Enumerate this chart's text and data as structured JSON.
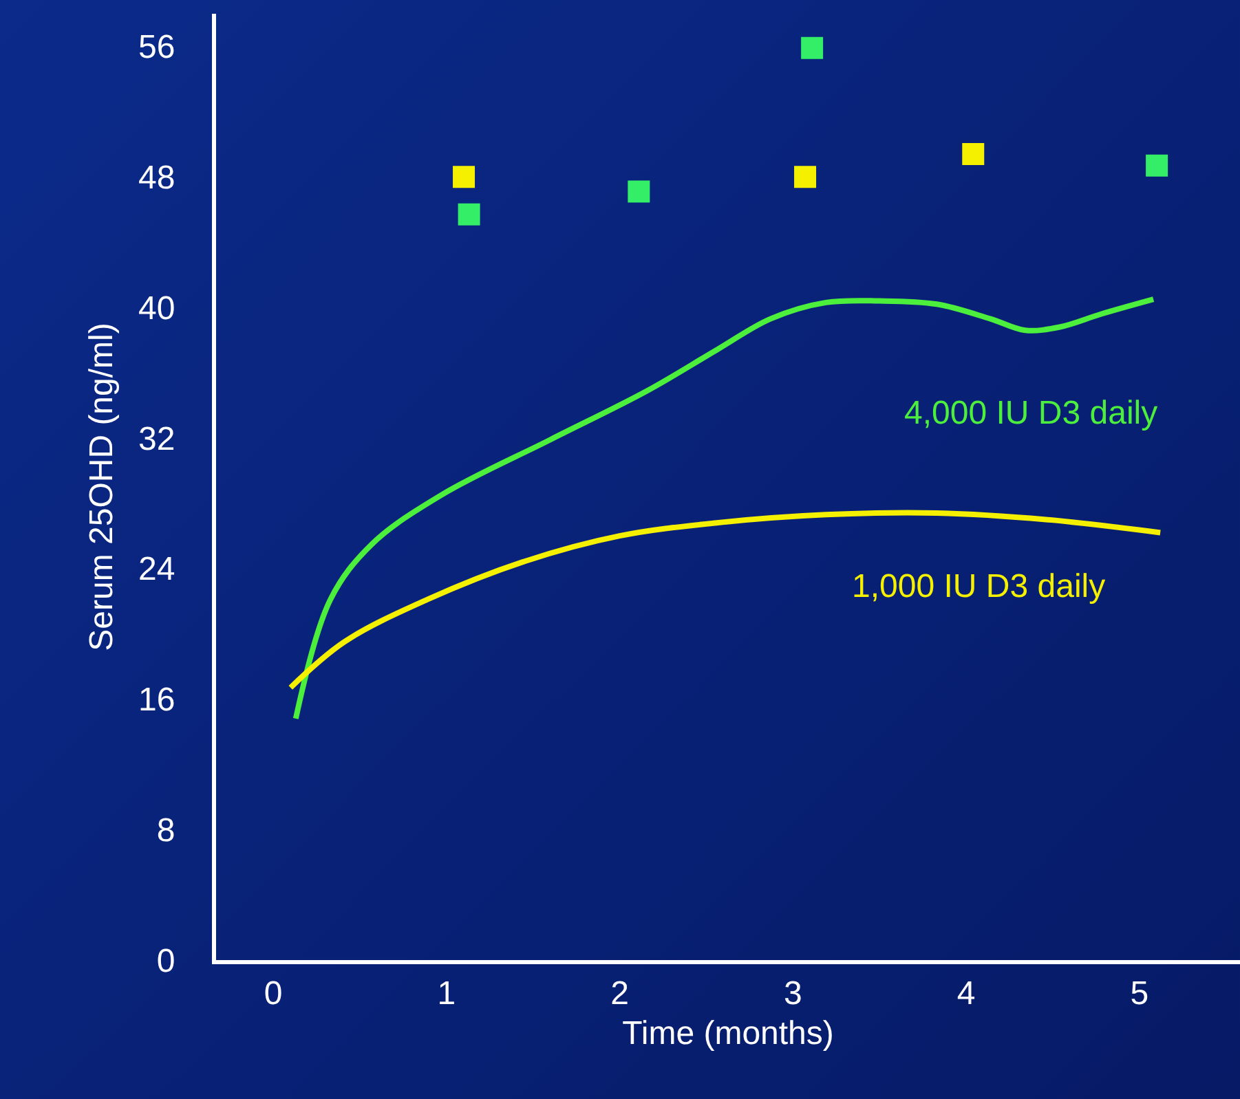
{
  "chart_data": {
    "type": "line",
    "xlabel": "Time (months)",
    "ylabel": "Serum 25OHD (ng/ml)",
    "xlim": [
      -0.33,
      5.58
    ],
    "xticks": [
      0,
      1,
      2,
      3,
      4,
      5
    ],
    "ylim": [
      0,
      58
    ],
    "yticks": [
      0,
      8,
      16,
      24,
      32,
      40,
      48,
      56
    ],
    "grid": false,
    "legend": false,
    "series": [
      {
        "name": "4,000 IU D3 daily",
        "color": "#4cf03c",
        "line_style": "solid",
        "marker": "none",
        "x": [
          0.13,
          0.33,
          0.57,
          0.97,
          1.6,
          2.16,
          2.56,
          2.87,
          3.19,
          3.5,
          3.83,
          4.14,
          4.34,
          4.54,
          4.78,
          5.08
        ],
        "values": [
          14.8,
          22.1,
          25.5,
          28.5,
          31.9,
          34.9,
          37.4,
          39.3,
          40.3,
          40.4,
          40.2,
          39.3,
          38.6,
          38.8,
          39.6,
          40.5
        ]
      },
      {
        "name": "1,000 IU D3 daily",
        "color": "#f5f000",
        "line_style": "solid",
        "marker": "none",
        "x": [
          0.1,
          0.41,
          0.89,
          1.44,
          2.0,
          2.56,
          3.19,
          3.83,
          4.46,
          5.12
        ],
        "values": [
          16.7,
          19.5,
          22.1,
          24.4,
          26.0,
          26.8,
          27.3,
          27.4,
          27.0,
          26.2
        ]
      },
      {
        "type": "scatter",
        "color": "#33ee66",
        "marker": "square",
        "x": [
          1.13,
          2.11,
          3.11,
          5.1
        ],
        "values": [
          45.7,
          47.1,
          55.9,
          48.7
        ]
      },
      {
        "type": "scatter",
        "color": "#f5f000",
        "marker": "square",
        "x": [
          1.1,
          3.07,
          4.04
        ],
        "values": [
          48.0,
          48.0,
          49.4
        ]
      }
    ]
  }
}
